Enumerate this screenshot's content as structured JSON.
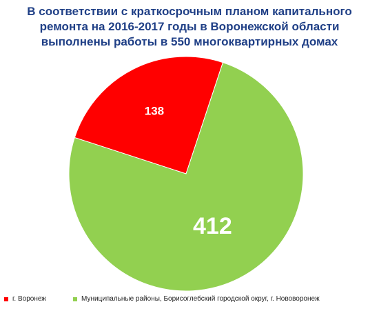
{
  "chart_data": {
    "type": "pie",
    "title_lines": [
      "В соответствии с краткосрочным планом капитального",
      "ремонта на 2016-2017 годы в Воронежской области",
      "выполнены работы в 550 многоквартирных домах"
    ],
    "slices": [
      {
        "name": "г. Воронеж",
        "value": 138,
        "label": "138",
        "color": "#ff0000"
      },
      {
        "name": "Муниципальные районы, Борисоглебский городской округ, г. Нововоронеж",
        "value": 412,
        "label": "412",
        "color": "#92d050"
      }
    ],
    "legend_position": "bottom"
  }
}
